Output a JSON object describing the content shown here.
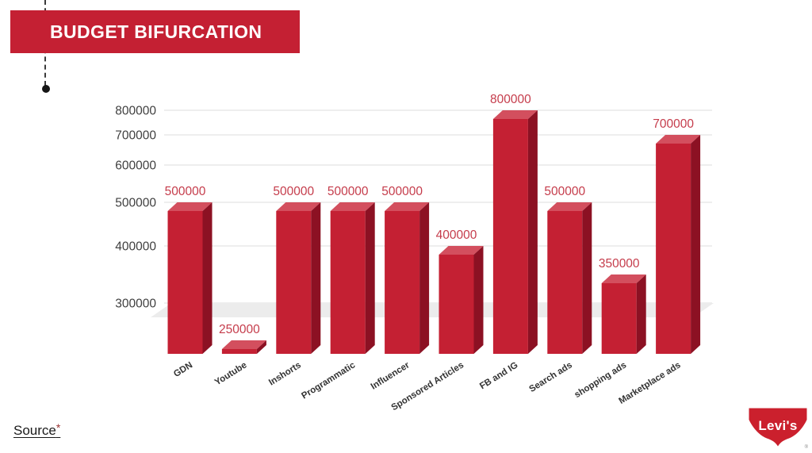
{
  "slide": {
    "title": "BUDGET BIFURCATION",
    "footer": {
      "source_label": "Source",
      "source_asterisk": "*"
    },
    "brand": {
      "name": "Levi's",
      "registered_mark": "®"
    }
  },
  "colors": {
    "banner_red": "#C42033",
    "bar_front": "#C42033",
    "bar_top": "#D34F5E",
    "bar_side": "#8C1123",
    "value_label": "#C53C4B",
    "axis_text": "#3F3F3F",
    "category_text": "#333333",
    "gridline": "#DCDCDC",
    "floor": "#ECECEC",
    "logo_red": "#CB202D",
    "connector": "#3A3A3A"
  },
  "chart_data": {
    "type": "bar",
    "style": "3d-column",
    "categories": [
      "GDN",
      "Youtube",
      "Inshorts",
      "Programmatic",
      "Influencer",
      "Sponsored Articles",
      "FB and IG",
      "Search ads",
      "shopping ads",
      "Marketplace ads"
    ],
    "values": [
      500000,
      250000,
      500000,
      500000,
      500000,
      400000,
      800000,
      500000,
      350000,
      700000
    ],
    "data_labels": [
      "500000",
      "250000",
      "500000",
      "500000",
      "500000",
      "400000",
      "800000",
      "500000",
      "350000",
      "700000"
    ],
    "y_ticks": [
      300000,
      400000,
      500000,
      600000,
      700000,
      800000
    ],
    "y_tick_labels": [
      "300000",
      "400000",
      "500000",
      "600000",
      "700000",
      "800000"
    ],
    "title": "",
    "xlabel": "",
    "ylabel": "",
    "ylim": [
      200000,
      850000
    ],
    "grid": true,
    "legend": false,
    "data_labels_position": "above-bar",
    "category_label_rotation_deg": -32
  }
}
